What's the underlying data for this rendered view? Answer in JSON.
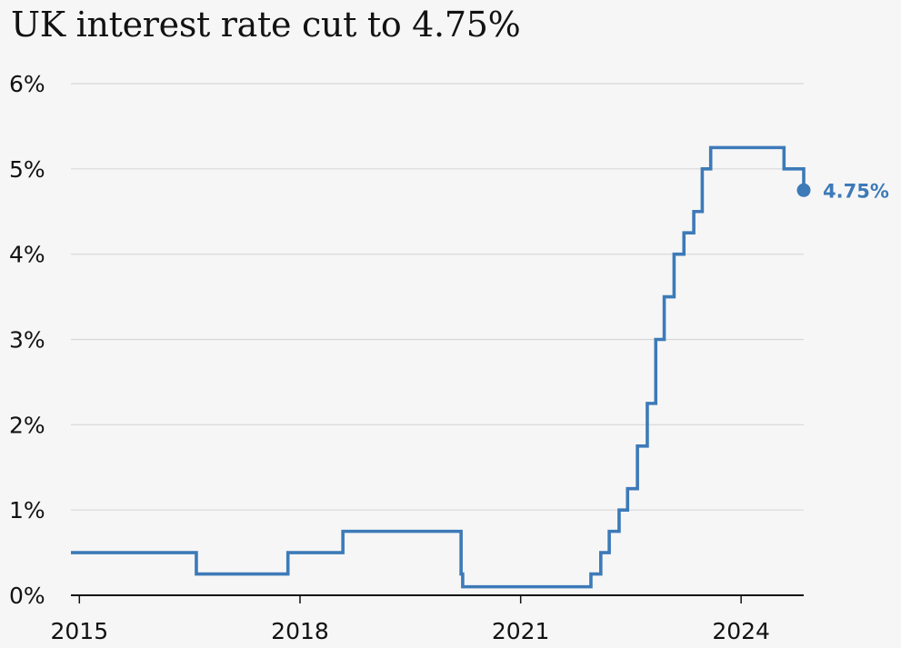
{
  "title": "UK interest rate cut to 4.75%",
  "colors": {
    "series": "#3d7ab8",
    "grid": "#d8d8d8",
    "axis": "#121212",
    "background": "#f6f6f6"
  },
  "chart_data": {
    "type": "line",
    "line_style": "step",
    "title": "UK interest rate cut to 4.75%",
    "xlabel": "",
    "ylabel": "",
    "xlim": [
      "2014-11-20",
      "2024-11-07"
    ],
    "ylim": [
      0,
      6
    ],
    "x_tick_labels": [
      "2015",
      "2018",
      "2021",
      "2024"
    ],
    "y_tick_labels": [
      "0%",
      "1%",
      "2%",
      "3%",
      "4%",
      "5%",
      "6%"
    ],
    "y_tick_values": [
      0,
      1,
      2,
      3,
      4,
      5,
      6
    ],
    "grid": true,
    "series": [
      {
        "points": [
          {
            "x": "2014-11-20",
            "y": 0.5
          },
          {
            "x": "2016-08-04",
            "y": 0.25
          },
          {
            "x": "2017-11-02",
            "y": 0.5
          },
          {
            "x": "2018-08-02",
            "y": 0.75
          },
          {
            "x": "2020-03-11",
            "y": 0.25
          },
          {
            "x": "2020-03-19",
            "y": 0.1
          },
          {
            "x": "2021-12-16",
            "y": 0.25
          },
          {
            "x": "2022-02-03",
            "y": 0.5
          },
          {
            "x": "2022-03-17",
            "y": 0.75
          },
          {
            "x": "2022-05-05",
            "y": 1.0
          },
          {
            "x": "2022-06-16",
            "y": 1.25
          },
          {
            "x": "2022-08-04",
            "y": 1.75
          },
          {
            "x": "2022-09-22",
            "y": 2.25
          },
          {
            "x": "2022-11-03",
            "y": 3.0
          },
          {
            "x": "2022-12-15",
            "y": 3.5
          },
          {
            "x": "2023-02-02",
            "y": 4.0
          },
          {
            "x": "2023-03-23",
            "y": 4.25
          },
          {
            "x": "2023-05-11",
            "y": 4.5
          },
          {
            "x": "2023-06-22",
            "y": 5.0
          },
          {
            "x": "2023-08-03",
            "y": 5.25
          },
          {
            "x": "2024-08-01",
            "y": 5.0
          },
          {
            "x": "2024-11-07",
            "y": 4.75
          }
        ]
      }
    ],
    "annotation": {
      "x": "2024-11-07",
      "y": 4.75,
      "label": "4.75%"
    }
  }
}
